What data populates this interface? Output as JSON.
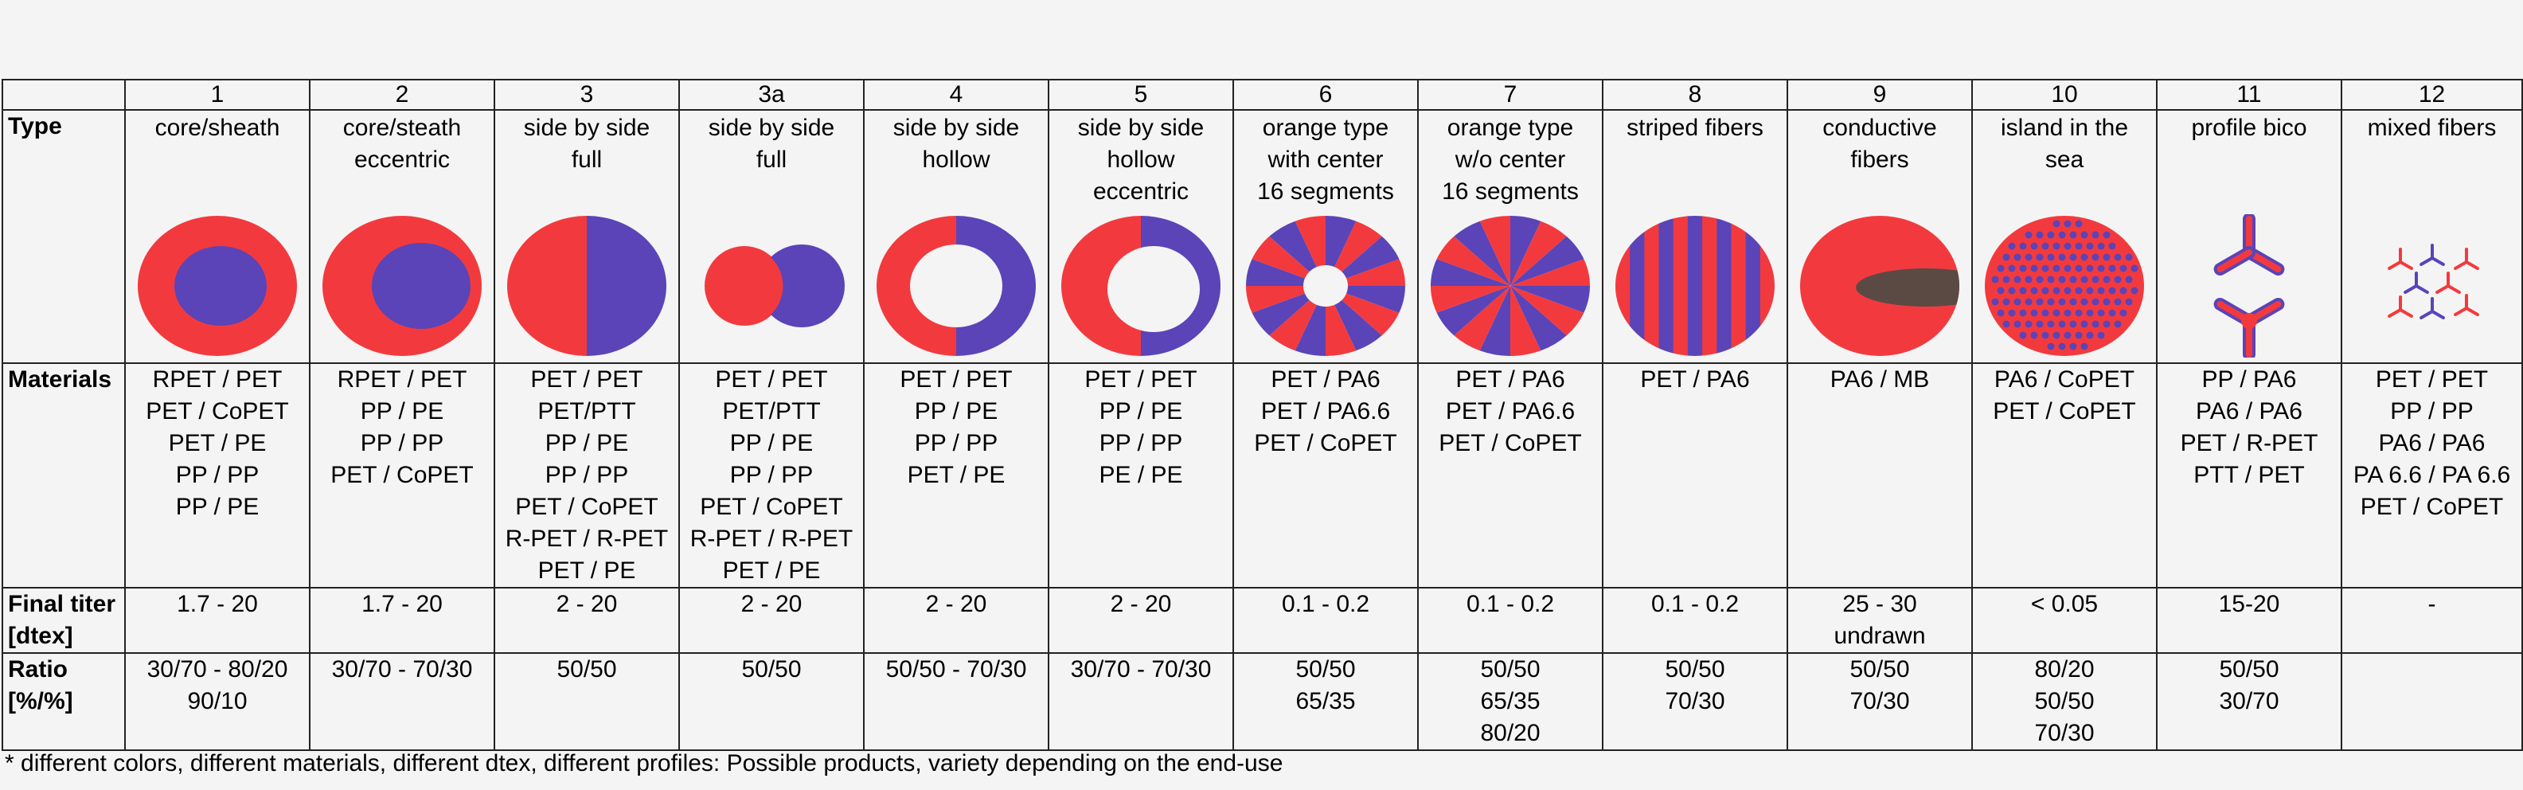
{
  "colors": {
    "red": "#f23a3e",
    "blue": "#5a44b8",
    "brown": "#5b4a44",
    "border": "#222222"
  },
  "row_labels": {
    "type": "Type",
    "materials": "Materials",
    "titer": [
      "Final titer",
      "[dtex]"
    ],
    "ratio": [
      "Ratio",
      "[%/%]"
    ]
  },
  "columns": [
    {
      "num": "1",
      "type": [
        "core/sheath"
      ],
      "icon": "core-sheath-icon",
      "materials": [
        "RPET / PET",
        "PET / CoPET",
        "PET / PE",
        "PP / PP",
        "PP / PE"
      ],
      "titer": [
        "1.7 - 20"
      ],
      "ratio": [
        "30/70 - 80/20",
        "90/10"
      ]
    },
    {
      "num": "2",
      "type": [
        "core/steath",
        "eccentric"
      ],
      "icon": "core-sheath-eccentric-icon",
      "materials": [
        "RPET / PET",
        "PP / PE",
        "PP / PP",
        "PET / CoPET"
      ],
      "titer": [
        "1.7 - 20"
      ],
      "ratio": [
        "30/70 - 70/30"
      ]
    },
    {
      "num": "3",
      "type": [
        "side by side",
        "full"
      ],
      "icon": "side-by-side-full-icon",
      "materials": [
        "PET / PET",
        "PET/PTT",
        "PP / PE",
        "PP / PP",
        "PET / CoPET",
        "R-PET / R-PET",
        "PET / PE"
      ],
      "titer": [
        "2 - 20"
      ],
      "ratio": [
        "50/50"
      ]
    },
    {
      "num": "3a",
      "type": [
        "side by side",
        "full"
      ],
      "icon": "side-by-side-snowman-icon",
      "materials": [
        "PET / PET",
        "PET/PTT",
        "PP / PE",
        "PP / PP",
        "PET / CoPET",
        "R-PET / R-PET",
        "PET / PE"
      ],
      "titer": [
        "2 - 20"
      ],
      "ratio": [
        "50/50"
      ]
    },
    {
      "num": "4",
      "type": [
        "side by side",
        "hollow"
      ],
      "icon": "side-by-side-hollow-icon",
      "materials": [
        "PET / PET",
        "PP / PE",
        "PP / PP",
        "PET / PE"
      ],
      "titer": [
        "2 - 20"
      ],
      "ratio": [
        "50/50 - 70/30"
      ]
    },
    {
      "num": "5",
      "type": [
        "side by side",
        "hollow",
        "eccentric"
      ],
      "icon": "side-by-side-hollow-eccentric-icon",
      "materials": [
        "PET / PET",
        "PP / PE",
        "PP / PP",
        "PE / PE"
      ],
      "titer": [
        "2 - 20"
      ],
      "ratio": [
        "30/70 - 70/30"
      ]
    },
    {
      "num": "6",
      "type": [
        "orange type",
        "with center",
        "16 segments"
      ],
      "icon": "orange-with-center-icon",
      "materials": [
        "PET / PA6",
        "PET / PA6.6",
        "PET / CoPET"
      ],
      "titer": [
        "0.1 - 0.2"
      ],
      "ratio": [
        "50/50",
        "65/35"
      ]
    },
    {
      "num": "7",
      "type": [
        "orange type",
        "w/o center",
        "16 segments"
      ],
      "icon": "orange-without-center-icon",
      "materials": [
        "PET / PA6",
        "PET / PA6.6",
        "PET / CoPET"
      ],
      "titer": [
        "0.1 - 0.2"
      ],
      "ratio": [
        "50/50",
        "65/35",
        "80/20"
      ]
    },
    {
      "num": "8",
      "type": [
        "striped fibers"
      ],
      "icon": "striped-fiber-icon",
      "materials": [
        "PET / PA6"
      ],
      "titer": [
        "0.1 - 0.2"
      ],
      "ratio": [
        "50/50",
        "70/30"
      ]
    },
    {
      "num": "9",
      "type": [
        "conductive",
        "fibers"
      ],
      "icon": "conductive-fiber-icon",
      "materials": [
        "PA6 / MB"
      ],
      "titer": [
        "25 - 30",
        "undrawn"
      ],
      "ratio": [
        "50/50",
        "70/30"
      ]
    },
    {
      "num": "10",
      "type": [
        "island in the",
        "sea"
      ],
      "icon": "island-in-the-sea-icon",
      "materials": [
        "PA6 / CoPET",
        "PET / CoPET"
      ],
      "titer": [
        "< 0.05"
      ],
      "ratio": [
        "80/20",
        "50/50",
        "70/30"
      ]
    },
    {
      "num": "11",
      "type": [
        "profile bico"
      ],
      "icon": "trilobal-profile-icon",
      "materials": [
        "PP / PA6",
        "PA6 / PA6",
        "PET / R-PET",
        "PTT / PET"
      ],
      "titer": [
        "15-20"
      ],
      "ratio": [
        "50/50",
        "30/70"
      ]
    },
    {
      "num": "12",
      "type": [
        "mixed fibers"
      ],
      "icon": "mixed-fibers-icon",
      "materials": [
        "PET / PET",
        "PP / PP",
        "PA6 / PA6",
        "PA 6.6 / PA 6.6",
        "PET / CoPET"
      ],
      "titer": [
        "-"
      ],
      "ratio": []
    }
  ],
  "footnote": "* different colors, different materials, different dtex, different profiles: Possible products, variety depending on the end-use"
}
